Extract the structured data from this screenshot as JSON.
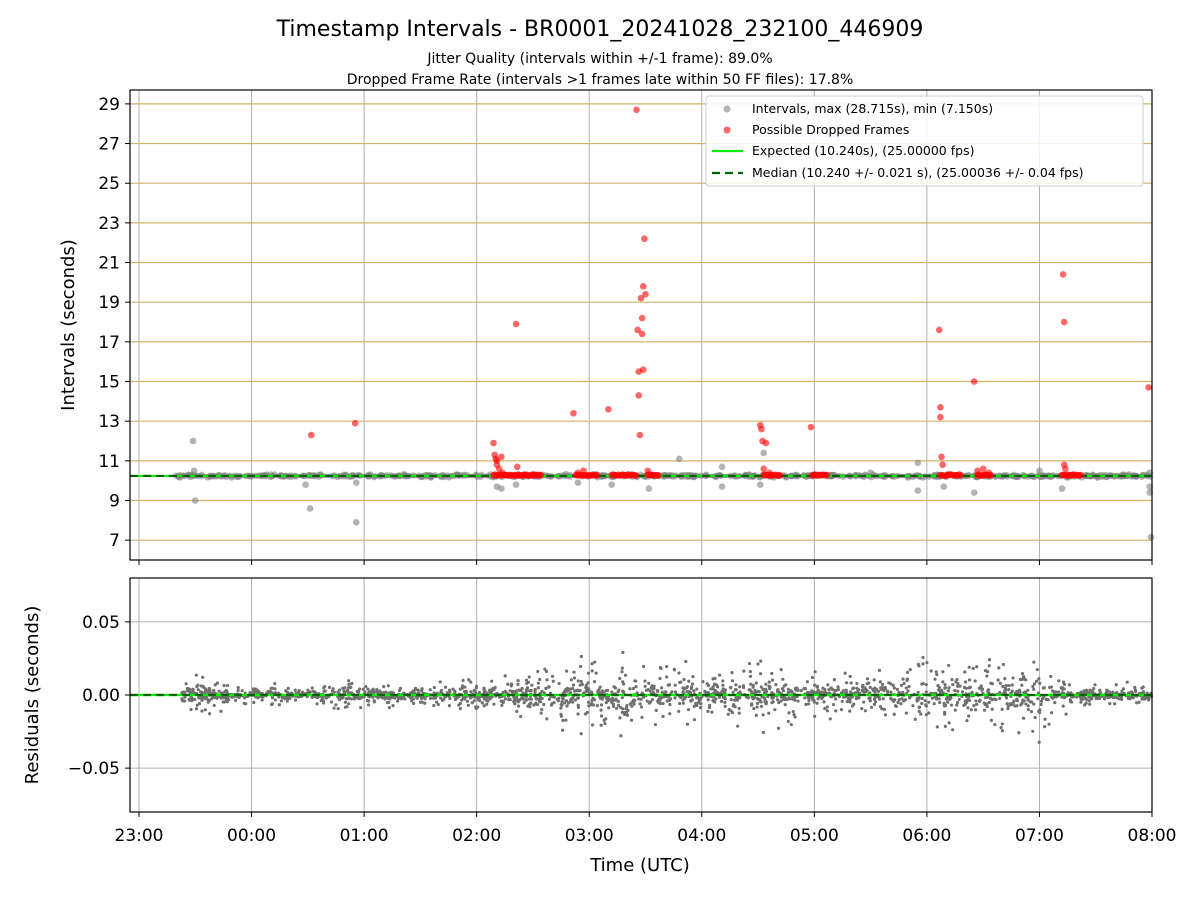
{
  "chart_data": [
    {
      "type": "scatter",
      "panel": "intervals",
      "title": "Timestamp Intervals - BR0001_20241028_232100_446909",
      "subtitle_lines": [
        "Jitter Quality (intervals within +/-1 frame): 89.0%",
        "Dropped Frame Rate (intervals >1 frames late within 50 FF files): 17.8%"
      ],
      "ylabel": "Intervals (seconds)",
      "xlabel": "",
      "x_unit": "hours since 23:00 UTC",
      "xlim": [
        -0.08,
        9.0
      ],
      "ylim": [
        6.0,
        29.7
      ],
      "yticks": [
        7,
        9,
        11,
        13,
        15,
        17,
        19,
        21,
        23,
        25,
        27,
        29
      ],
      "xtick_labels": [],
      "grid": true,
      "legend_position": "top-right",
      "legend": [
        "Intervals, max (28.715s), min (7.150s)",
        "Possible Dropped Frames",
        "Expected (10.240s), (25.00000 fps)",
        "Median (10.240 +/- 0.021 s), (25.00036 +/- 0.04 fps)"
      ],
      "expected_interval": 10.24,
      "median_interval": 10.24,
      "interval_points_gray": [
        [
          0.48,
          12.0
        ],
        [
          0.49,
          10.5
        ],
        [
          0.5,
          9.0
        ],
        [
          1.52,
          8.6
        ],
        [
          1.48,
          9.8
        ],
        [
          1.93,
          7.9
        ],
        [
          1.93,
          9.9
        ],
        [
          3.18,
          9.7
        ],
        [
          3.22,
          9.6
        ],
        [
          3.35,
          9.8
        ],
        [
          3.9,
          9.9
        ],
        [
          4.2,
          9.8
        ],
        [
          4.53,
          9.6
        ],
        [
          4.8,
          11.1
        ],
        [
          5.18,
          10.7
        ],
        [
          5.18,
          9.7
        ],
        [
          5.52,
          9.8
        ],
        [
          5.55,
          11.4
        ],
        [
          6.5,
          10.4
        ],
        [
          6.92,
          10.9
        ],
        [
          6.92,
          9.5
        ],
        [
          7.15,
          9.7
        ],
        [
          7.42,
          9.4
        ],
        [
          7.45,
          10.3
        ],
        [
          8.0,
          10.5
        ],
        [
          8.2,
          9.6
        ],
        [
          8.98,
          9.4
        ],
        [
          8.98,
          9.7
        ],
        [
          8.99,
          7.15
        ],
        [
          8.98,
          10.4
        ]
      ],
      "dropped_frame_points": [
        [
          1.53,
          12.3
        ],
        [
          1.92,
          12.9
        ],
        [
          3.15,
          11.9
        ],
        [
          3.16,
          11.3
        ],
        [
          3.17,
          11.1
        ],
        [
          3.18,
          11.0
        ],
        [
          3.18,
          10.8
        ],
        [
          3.2,
          10.6
        ],
        [
          3.22,
          11.2
        ],
        [
          3.23,
          10.4
        ],
        [
          3.35,
          17.9
        ],
        [
          3.36,
          10.7
        ],
        [
          3.42,
          10.3
        ],
        [
          3.5,
          10.3
        ],
        [
          3.86,
          13.4
        ],
        [
          3.9,
          10.4
        ],
        [
          3.95,
          10.5
        ],
        [
          4.17,
          13.6
        ],
        [
          4.3,
          10.3
        ],
        [
          4.42,
          28.7
        ],
        [
          4.43,
          17.6
        ],
        [
          4.44,
          15.5
        ],
        [
          4.44,
          14.3
        ],
        [
          4.45,
          12.3
        ],
        [
          4.46,
          19.2
        ],
        [
          4.47,
          17.4
        ],
        [
          4.47,
          18.2
        ],
        [
          4.48,
          15.6
        ],
        [
          4.48,
          19.8
        ],
        [
          4.49,
          22.2
        ],
        [
          4.5,
          19.4
        ],
        [
          4.52,
          10.5
        ],
        [
          4.55,
          10.3
        ],
        [
          5.52,
          12.8
        ],
        [
          5.53,
          12.6
        ],
        [
          5.54,
          12.0
        ],
        [
          5.57,
          11.9
        ],
        [
          5.55,
          10.6
        ],
        [
          5.6,
          10.4
        ],
        [
          5.97,
          12.7
        ],
        [
          6.0,
          10.3
        ],
        [
          7.11,
          17.6
        ],
        [
          7.12,
          13.7
        ],
        [
          7.12,
          13.2
        ],
        [
          7.13,
          11.2
        ],
        [
          7.14,
          10.8
        ],
        [
          7.2,
          10.3
        ],
        [
          7.42,
          15.0
        ],
        [
          7.45,
          10.5
        ],
        [
          7.5,
          10.6
        ],
        [
          7.55,
          10.4
        ],
        [
          8.21,
          20.4
        ],
        [
          8.22,
          18.0
        ],
        [
          8.22,
          10.8
        ],
        [
          8.23,
          10.6
        ],
        [
          8.3,
          10.3
        ],
        [
          8.97,
          14.7
        ]
      ],
      "dropped_frame_bands": [
        [
          3.15,
          3.58
        ],
        [
          3.88,
          4.08
        ],
        [
          4.2,
          4.42
        ],
        [
          4.52,
          4.62
        ],
        [
          5.55,
          5.7
        ],
        [
          5.98,
          6.12
        ],
        [
          7.12,
          7.3
        ],
        [
          7.45,
          7.58
        ],
        [
          8.2,
          8.38
        ]
      ],
      "dense_band": [
        0.33,
        9.0
      ]
    },
    {
      "type": "scatter",
      "panel": "residuals",
      "ylabel": "Residuals (seconds)",
      "xlabel": "Time (UTC)",
      "x_unit": "hours since 23:00 UTC",
      "xlim": [
        -0.08,
        9.0
      ],
      "ylim": [
        -0.08,
        0.08
      ],
      "ytick_labels": [
        "0.05",
        "0.00",
        "−0.05"
      ],
      "yticks": [
        0.05,
        0.0,
        -0.05
      ],
      "xtick_labels": [
        "23:00",
        "00:00",
        "01:00",
        "02:00",
        "03:00",
        "04:00",
        "05:00",
        "06:00",
        "07:00",
        "08:00"
      ],
      "grid": true,
      "residual_envelope": [
        [
          0.4,
          0.025
        ],
        [
          0.6,
          0.025
        ],
        [
          0.8,
          0.012
        ],
        [
          1.5,
          0.01
        ],
        [
          1.8,
          0.02
        ],
        [
          2.5,
          0.012
        ],
        [
          3.0,
          0.02
        ],
        [
          3.5,
          0.03
        ],
        [
          4.0,
          0.05
        ],
        [
          4.5,
          0.045
        ],
        [
          5.0,
          0.03
        ],
        [
          5.5,
          0.04
        ],
        [
          6.0,
          0.03
        ],
        [
          6.5,
          0.025
        ],
        [
          7.0,
          0.05
        ],
        [
          7.5,
          0.05
        ],
        [
          8.0,
          0.05
        ],
        [
          8.3,
          0.015
        ],
        [
          9.0,
          0.01
        ]
      ]
    }
  ],
  "colors": {
    "gray_point": "#808080",
    "red_point": "#ff0000",
    "expected_line": "#00ee00",
    "median_line": "#006400",
    "interval_grid": "#d2b26a",
    "grid": "#b0b0b0"
  }
}
